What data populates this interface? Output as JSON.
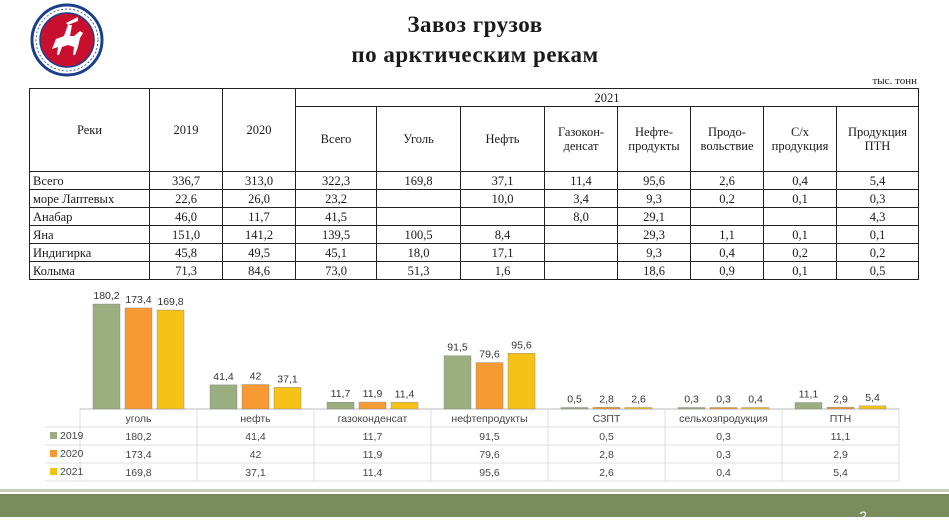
{
  "title_line1": "Завоз грузов",
  "title_line2": "по арктическим рекам",
  "units": "тыс. тонн",
  "table": {
    "col_rivers": "Реки",
    "col_2019": "2019",
    "col_2020": "2020",
    "col_2021": "2021",
    "sub_headers": [
      "Всего",
      "Уголь",
      "Нефть",
      "Газокон-\nденсат",
      "Нефте-\nпродукты",
      "Продо-\nвольствие",
      "С/х\nпродукция",
      "Продукция\nПТН"
    ],
    "rows": [
      {
        "river": "Всего",
        "cells": [
          "336,7",
          "313,0",
          "322,3",
          "169,8",
          "37,1",
          "11,4",
          "95,6",
          "2,6",
          "0,4",
          "5,4"
        ]
      },
      {
        "river": "море Лаптевых",
        "cells": [
          "22,6",
          "26,0",
          "23,2",
          "",
          "10,0",
          "3,4",
          "9,3",
          "0,2",
          "0,1",
          "0,3"
        ]
      },
      {
        "river": "Анабар",
        "cells": [
          "46,0",
          "11,7",
          "41,5",
          "",
          "",
          "8,0",
          "29,1",
          "",
          "",
          "4,3"
        ]
      },
      {
        "river": "Яна",
        "cells": [
          "151,0",
          "141,2",
          "139,5",
          "100,5",
          "8,4",
          "",
          "29,3",
          "1,1",
          "0,1",
          "0,1"
        ]
      },
      {
        "river": "Индигирка",
        "cells": [
          "45,8",
          "49,5",
          "45,1",
          "18,0",
          "17,1",
          "",
          "9,3",
          "0,4",
          "0,2",
          "0,2"
        ]
      },
      {
        "river": "Колыма",
        "cells": [
          "71,3",
          "84,6",
          "73,0",
          "51,3",
          "1,6",
          "",
          "18,6",
          "0,9",
          "0,1",
          "0,5"
        ]
      }
    ]
  },
  "chart_data": {
    "type": "bar",
    "categories": [
      "уголь",
      "нефть",
      "газоконденсат",
      "нефтепродукты",
      "СЗПТ",
      "сельхозпродукция",
      "ПТН"
    ],
    "series": [
      {
        "name": "2019",
        "values": [
          180.2,
          41.4,
          11.7,
          91.5,
          0.5,
          0.3,
          11.1
        ],
        "labels": [
          "180,2",
          "41,4",
          "11,7",
          "91,5",
          "0,5",
          "0,3",
          "11,1"
        ],
        "color": "#9bae7f"
      },
      {
        "name": "2020",
        "values": [
          173.4,
          42,
          11.9,
          79.6,
          2.8,
          0.3,
          2.9
        ],
        "labels": [
          "173,4",
          "42",
          "11,9",
          "79,6",
          "2,8",
          "0,3",
          "2,9"
        ],
        "color": "#f79a33"
      },
      {
        "name": "2021",
        "values": [
          169.8,
          37.1,
          11.4,
          95.6,
          2.6,
          0.4,
          5.4
        ],
        "labels": [
          "169,8",
          "37,1",
          "11,4",
          "95,6",
          "2,6",
          "0,4",
          "5,4"
        ],
        "color": "#f7c218"
      }
    ],
    "ylim": [
      0,
      180.2
    ],
    "legend": "table-left",
    "grid": false
  },
  "colors": {
    "footer": "#7b8c5c",
    "emblem_red": "#c8102e",
    "emblem_blue": "#1b3f8b"
  },
  "page_number": "2"
}
